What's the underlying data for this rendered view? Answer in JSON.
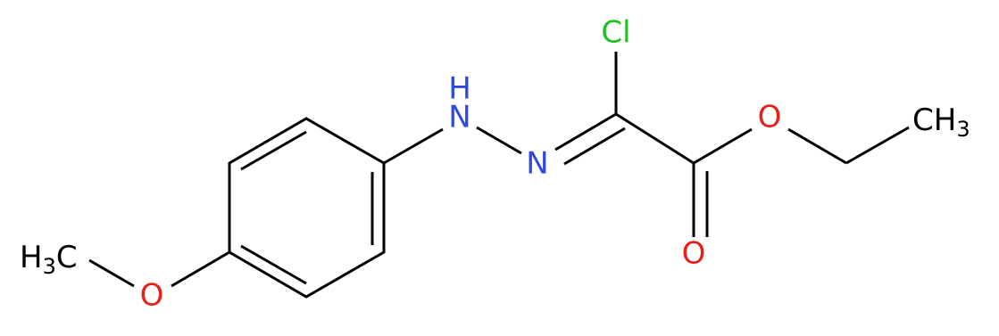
{
  "nodes": [
    {
      "label": "Cl"
    },
    {
      "label": "H"
    },
    {
      "label": "N"
    },
    {
      "label": "N"
    },
    {
      "label": "O"
    },
    {
      "label": "O"
    },
    {
      "label": "O"
    },
    {
      "label": "CH",
      "subscript": "3"
    },
    {
      "prefix": "H",
      "subscript": "3",
      "label": "C"
    }
  ]
}
